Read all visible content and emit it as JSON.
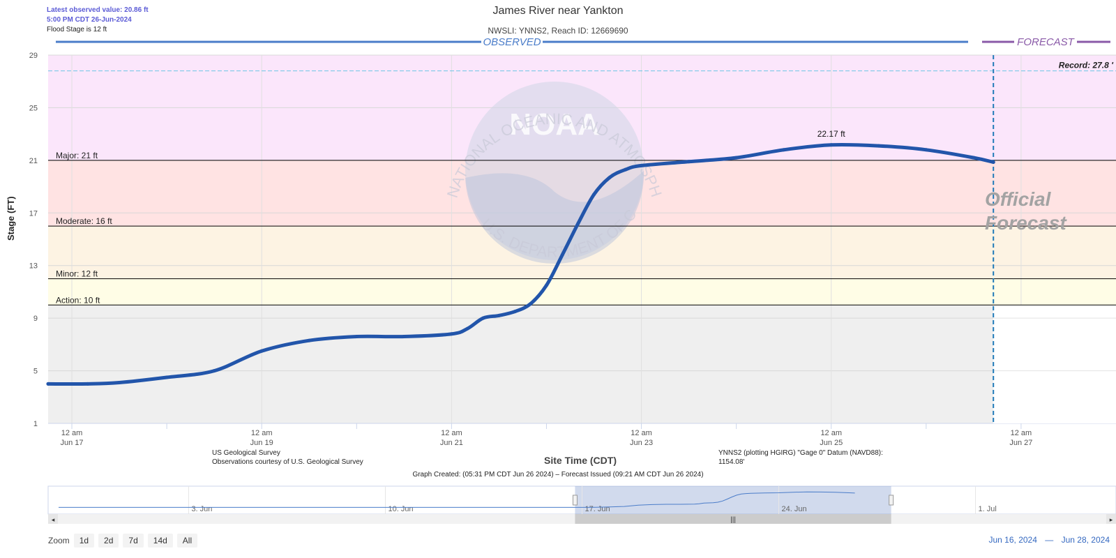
{
  "header": {
    "latest_observed": "Latest observed value: 20.86 ft",
    "latest_time": "5:00 PM CDT 26-Jun-2024",
    "flood_stage_note": "Flood Stage is 12 ft",
    "title": "James River near Yankton",
    "subtitle": "NWSLI: YNNS2, Reach ID: 12669690"
  },
  "chart_data": {
    "type": "line",
    "title": "James River near Yankton",
    "subtitle": "NWSLI: YNNS2, Reach ID: 12669690",
    "xlabel": "Site Time (CDT)",
    "ylabel": "Stage (FT)",
    "ylim": [
      1,
      29
    ],
    "yticks": [
      1,
      5,
      9,
      13,
      17,
      21,
      25,
      29
    ],
    "xlim": [
      "2024-06-16T18:00",
      "2024-06-28T00:00"
    ],
    "x_ticks": [
      {
        "x": "2024-06-17T00:00",
        "l1": "12 am",
        "l2": "Jun 17"
      },
      {
        "x": "2024-06-19T00:00",
        "l1": "12 am",
        "l2": "Jun 19"
      },
      {
        "x": "2024-06-21T00:00",
        "l1": "12 am",
        "l2": "Jun 21"
      },
      {
        "x": "2024-06-23T00:00",
        "l1": "12 am",
        "l2": "Jun 23"
      },
      {
        "x": "2024-06-25T00:00",
        "l1": "12 am",
        "l2": "Jun 25"
      },
      {
        "x": "2024-06-27T00:00",
        "l1": "12 am",
        "l2": "Jun 27"
      }
    ],
    "flood_categories": [
      {
        "name": "Action",
        "value": 10,
        "label": "Action: 10 ft",
        "color": "#fffde6"
      },
      {
        "name": "Minor",
        "value": 12,
        "label": "Minor: 12 ft",
        "color": "#fdf3e3"
      },
      {
        "name": "Moderate",
        "value": 16,
        "label": "Moderate: 16 ft",
        "color": "#ffe3e3"
      },
      {
        "name": "Major",
        "value": 21,
        "label": "Major: 21 ft",
        "color": "#fbe6fb"
      }
    ],
    "record": {
      "value": 27.8,
      "label": "Record: 27.8 '"
    },
    "observed_label": "OBSERVED",
    "forecast_label": "FORECAST",
    "forecast_start": "2024-06-26T17:00",
    "official_forecast_text": [
      "Official",
      "Forecast"
    ],
    "peak": {
      "x": "2024-06-25T00:00",
      "value": 22.17,
      "label": "22.17 ft"
    },
    "series": [
      {
        "color": "#2255aa",
        "points": [
          [
            "2024-06-16T18:00",
            4.0
          ],
          [
            "2024-06-17T04:00",
            4.0
          ],
          [
            "2024-06-17T12:00",
            4.1
          ],
          [
            "2024-06-18T00:00",
            4.5
          ],
          [
            "2024-06-18T12:00",
            5.0
          ],
          [
            "2024-06-19T00:00",
            6.5
          ],
          [
            "2024-06-19T12:00",
            7.3
          ],
          [
            "2024-06-20T00:00",
            7.6
          ],
          [
            "2024-06-20T12:00",
            7.6
          ],
          [
            "2024-06-21T00:00",
            7.8
          ],
          [
            "2024-06-21T04:00",
            8.2
          ],
          [
            "2024-06-21T08:00",
            9.0
          ],
          [
            "2024-06-21T12:00",
            9.2
          ],
          [
            "2024-06-21T16:00",
            9.5
          ],
          [
            "2024-06-21T20:00",
            10.1
          ],
          [
            "2024-06-22T00:00",
            11.5
          ],
          [
            "2024-06-22T04:00",
            13.8
          ],
          [
            "2024-06-22T08:00",
            16.2
          ],
          [
            "2024-06-22T12:00",
            18.4
          ],
          [
            "2024-06-22T16:00",
            19.7
          ],
          [
            "2024-06-22T20:00",
            20.3
          ],
          [
            "2024-06-23T00:00",
            20.6
          ],
          [
            "2024-06-23T12:00",
            20.9
          ],
          [
            "2024-06-24T00:00",
            21.2
          ],
          [
            "2024-06-24T12:00",
            21.8
          ],
          [
            "2024-06-25T00:00",
            22.17
          ],
          [
            "2024-06-25T12:00",
            22.1
          ],
          [
            "2024-06-26T00:00",
            21.8
          ],
          [
            "2024-06-26T12:00",
            21.2
          ],
          [
            "2024-06-26T17:00",
            20.86
          ]
        ]
      }
    ],
    "navigator": {
      "labels": [
        {
          "x": "2024-06-03",
          "label": "3. Jun"
        },
        {
          "x": "2024-06-10",
          "label": "10. Jun"
        },
        {
          "x": "2024-06-17",
          "label": "17. Jun"
        },
        {
          "x": "2024-06-24",
          "label": "24. Jun"
        },
        {
          "x": "2024-07-01",
          "label": "1. Jul"
        }
      ]
    }
  },
  "footer": {
    "source1": "US Geological Survey",
    "source2": "Observations courtesy of U.S. Geological Survey",
    "datum1": "YNNS2 (plotting HGIRG) \"Gage 0\" Datum (NAVD88):",
    "datum2": "1154.08'",
    "x_title": "Site Time (CDT)",
    "created": "Graph Created: (05:31 PM CDT Jun 26 2024) – Forecast Issued (09:21 AM CDT Jun 26 2024)"
  },
  "zoom": {
    "label": "Zoom",
    "buttons": [
      "1d",
      "2d",
      "7d",
      "14d",
      "All"
    ]
  },
  "range": {
    "from": "Jun 16, 2024",
    "sep": "—",
    "to": "Jun 28, 2024"
  },
  "watermark": {
    "outer_text": "NATIONAL OCEANIC AND ATMOSPHERIC ADMINISTRATION",
    "inner_text": "NOAA",
    "bottom_text": "U.S. DEPARTMENT OF COMMERCE"
  }
}
